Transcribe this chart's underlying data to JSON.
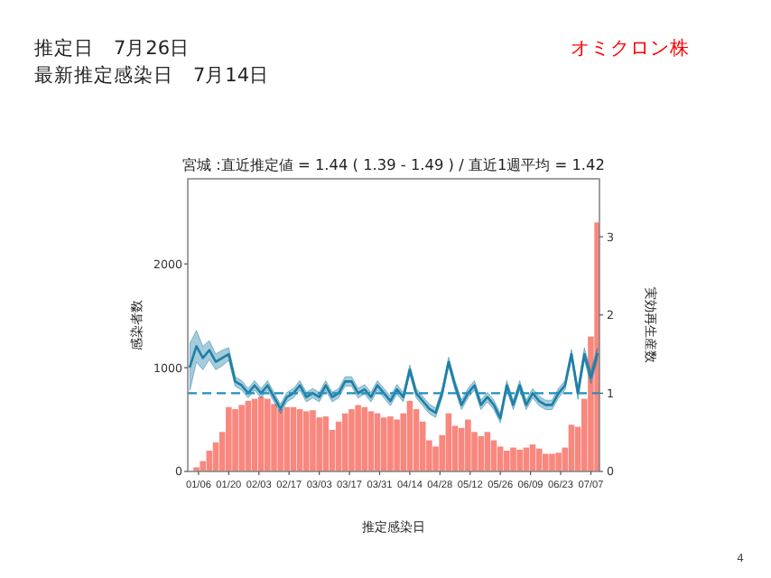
{
  "chart_data": {
    "type": "bar",
    "title": "宮城 :直近推定値 = 1.44 ( 1.39 - 1.49 ) / 直近1週平均 = 1.42",
    "xlabel": "推定感染日",
    "ylabel": "感染者数",
    "y2label": "実効再生産数",
    "annotations": [
      "推定日　7月26日",
      "最新推定感染日　7月14日",
      "オミクロン株",
      "4"
    ],
    "x": [
      "--01-02",
      "--01-05",
      "--01-08",
      "--01-11",
      "--01-14",
      "--01-17",
      "--01-20",
      "--01-23",
      "--01-26",
      "--01-29",
      "--02-01",
      "--02-04",
      "--02-07",
      "--02-10",
      "--02-13",
      "--02-16",
      "--02-19",
      "--02-22",
      "--02-25",
      "--02-28",
      "--03-03",
      "--03-06",
      "--03-09",
      "--03-12",
      "--03-15",
      "--03-18",
      "--03-21",
      "--03-24",
      "--03-27",
      "--03-30",
      "--04-02",
      "--04-05",
      "--04-08",
      "--04-11",
      "--04-14",
      "--04-17",
      "--04-20",
      "--04-23",
      "--04-26",
      "--04-29",
      "--05-02",
      "--05-05",
      "--05-08",
      "--05-11",
      "--05-14",
      "--05-17",
      "--05-20",
      "--05-23",
      "--05-26",
      "--05-29",
      "--06-01",
      "--06-04",
      "--06-07",
      "--06-10",
      "--06-13",
      "--06-16",
      "--06-19",
      "--06-22",
      "--06-25",
      "--06-28",
      "--07-01",
      "--07-04",
      "--07-07",
      "--07-10"
    ],
    "xlim": [
      "--01-01",
      "--07-11"
    ],
    "xticks": [
      {
        "value": "--01-06",
        "label": "01/06"
      },
      {
        "value": "--01-20",
        "label": "01/20"
      },
      {
        "value": "--02-03",
        "label": "02/03"
      },
      {
        "value": "--02-17",
        "label": "02/17"
      },
      {
        "value": "--03-03",
        "label": "03/03"
      },
      {
        "value": "--03-17",
        "label": "03/17"
      },
      {
        "value": "--03-31",
        "label": "03/31"
      },
      {
        "value": "--04-14",
        "label": "04/14"
      },
      {
        "value": "--04-28",
        "label": "04/28"
      },
      {
        "value": "--05-12",
        "label": "05/12"
      },
      {
        "value": "--05-26",
        "label": "05/26"
      },
      {
        "value": "--06-09",
        "label": "06/09"
      },
      {
        "value": "--06-23",
        "label": "06/23"
      },
      {
        "value": "--07-07",
        "label": "07/07"
      }
    ],
    "ylim": [
      0,
      2820
    ],
    "yticks": [
      0,
      1000,
      2000
    ],
    "y2lim": [
      0,
      3.74
    ],
    "y2ticks": [
      0,
      1,
      2,
      3
    ],
    "series": [
      {
        "type": "bar",
        "color": "#f8877e",
        "values": [
          null,
          40,
          100,
          200,
          280,
          380,
          620,
          600,
          640,
          680,
          700,
          720,
          700,
          650,
          600,
          620,
          620,
          600,
          580,
          590,
          520,
          530,
          400,
          480,
          560,
          600,
          640,
          620,
          580,
          560,
          520,
          530,
          500,
          560,
          680,
          600,
          480,
          300,
          240,
          350,
          560,
          440,
          420,
          500,
          380,
          340,
          380,
          300,
          240,
          200,
          230,
          210,
          230,
          260,
          220,
          170,
          170,
          180,
          230,
          450,
          430,
          700,
          1300,
          2400
        ]
      },
      {
        "type": "line",
        "axis": "y2",
        "color": "#1f7fa6",
        "values": [
          1.34,
          1.6,
          1.45,
          1.55,
          1.4,
          1.45,
          1.5,
          1.15,
          1.1,
          1.0,
          1.1,
          1.0,
          1.1,
          0.95,
          0.8,
          0.95,
          1.0,
          1.1,
          0.95,
          1.0,
          0.95,
          1.1,
          0.95,
          1.0,
          1.15,
          1.15,
          1.0,
          1.05,
          0.95,
          1.1,
          1.0,
          0.9,
          1.05,
          0.95,
          1.3,
          1.0,
          0.9,
          0.8,
          0.75,
          1.0,
          1.4,
          1.1,
          0.85,
          1.0,
          1.1,
          0.85,
          0.95,
          0.85,
          0.68,
          1.1,
          0.85,
          1.1,
          0.85,
          1.0,
          0.9,
          0.85,
          0.85,
          1.0,
          1.1,
          1.5,
          1.0,
          1.5,
          1.2,
          1.5
        ],
        "lower": [
          1.04,
          1.4,
          1.3,
          1.43,
          1.3,
          1.35,
          1.42,
          1.09,
          1.04,
          0.94,
          1.04,
          0.94,
          1.04,
          0.89,
          0.74,
          0.89,
          0.94,
          1.04,
          0.89,
          0.94,
          0.89,
          1.04,
          0.89,
          0.94,
          1.09,
          1.09,
          0.94,
          0.99,
          0.89,
          1.04,
          0.94,
          0.84,
          0.99,
          0.89,
          1.24,
          0.94,
          0.84,
          0.74,
          0.69,
          0.94,
          1.34,
          1.04,
          0.79,
          0.94,
          1.04,
          0.79,
          0.89,
          0.79,
          0.62,
          1.04,
          0.79,
          1.04,
          0.79,
          0.94,
          0.84,
          0.79,
          0.79,
          0.94,
          1.04,
          1.44,
          0.92,
          1.42,
          1.12,
          1.42
        ],
        "upper": [
          1.64,
          1.8,
          1.6,
          1.67,
          1.5,
          1.55,
          1.58,
          1.21,
          1.16,
          1.06,
          1.16,
          1.06,
          1.16,
          1.01,
          0.86,
          1.01,
          1.06,
          1.16,
          1.01,
          1.06,
          1.01,
          1.16,
          1.01,
          1.06,
          1.21,
          1.21,
          1.06,
          1.11,
          1.01,
          1.16,
          1.06,
          0.96,
          1.11,
          1.01,
          1.36,
          1.06,
          0.96,
          0.86,
          0.81,
          1.06,
          1.46,
          1.16,
          0.91,
          1.06,
          1.16,
          0.91,
          1.01,
          0.91,
          0.74,
          1.16,
          0.91,
          1.16,
          0.91,
          1.06,
          0.96,
          0.91,
          0.91,
          1.06,
          1.16,
          1.56,
          1.08,
          1.58,
          1.28,
          1.58
        ]
      }
    ],
    "ref_lines": [
      {
        "axis": "y2",
        "value": 1,
        "color": "#1f8fbf",
        "line_style": "dashed"
      }
    ]
  }
}
